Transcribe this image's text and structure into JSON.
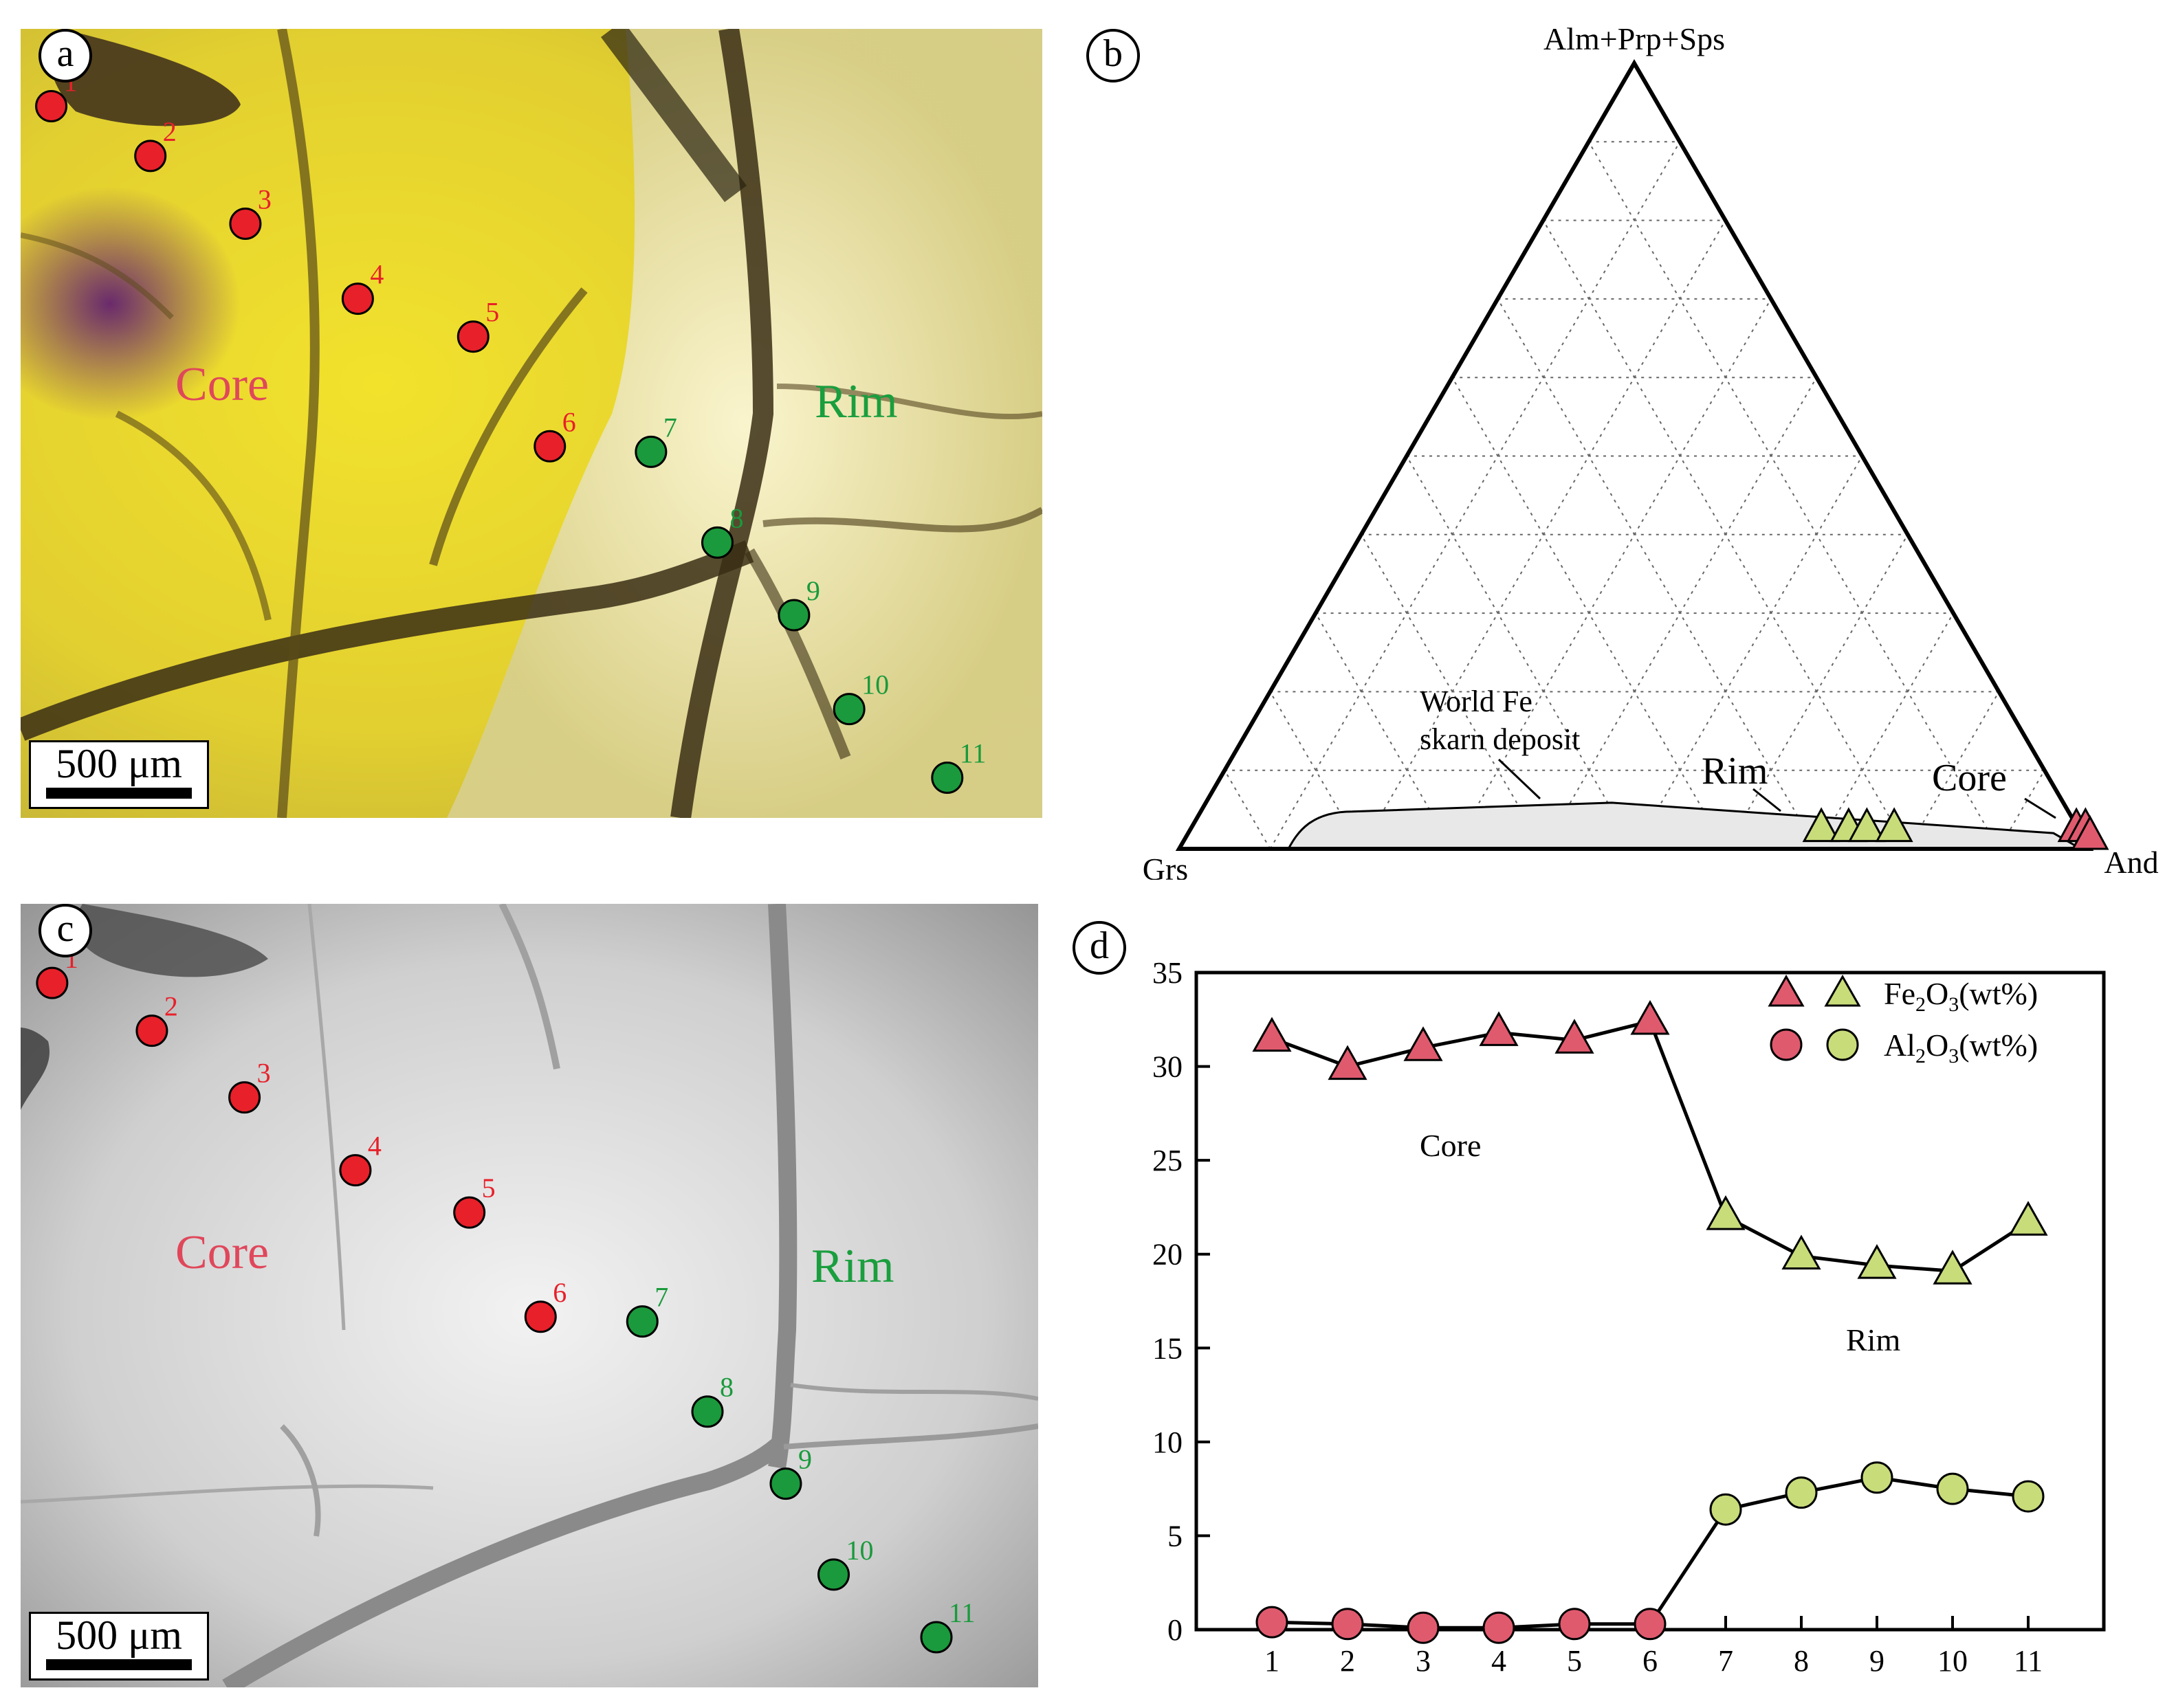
{
  "panels": {
    "a": {
      "letter": "a",
      "core_label": "Core",
      "rim_label": "Rim",
      "scale_label": "500 μm",
      "points": [
        {
          "n": "1",
          "zone": "core",
          "fx": 0.03,
          "fy": 0.098
        },
        {
          "n": "2",
          "zone": "core",
          "fx": 0.127,
          "fy": 0.161
        },
        {
          "n": "3",
          "zone": "core",
          "fx": 0.22,
          "fy": 0.247
        },
        {
          "n": "4",
          "zone": "core",
          "fx": 0.33,
          "fy": 0.342
        },
        {
          "n": "5",
          "zone": "core",
          "fx": 0.443,
          "fy": 0.39
        },
        {
          "n": "6",
          "zone": "core",
          "fx": 0.518,
          "fy": 0.529
        },
        {
          "n": "7",
          "zone": "rim",
          "fx": 0.617,
          "fy": 0.536
        },
        {
          "n": "8",
          "zone": "rim",
          "fx": 0.682,
          "fy": 0.651
        },
        {
          "n": "9",
          "zone": "rim",
          "fx": 0.757,
          "fy": 0.743
        },
        {
          "n": "10",
          "zone": "rim",
          "fx": 0.811,
          "fy": 0.862
        },
        {
          "n": "11",
          "zone": "rim",
          "fx": 0.907,
          "fy": 0.949
        }
      ]
    },
    "b": {
      "letter": "b"
    },
    "c": {
      "letter": "c",
      "core_label": "Core",
      "rim_label": "Rim",
      "scale_label": "500 μm",
      "points": [
        {
          "n": "1",
          "zone": "core",
          "fx": 0.031,
          "fy": 0.101
        },
        {
          "n": "2",
          "zone": "core",
          "fx": 0.129,
          "fy": 0.162
        },
        {
          "n": "3",
          "zone": "core",
          "fx": 0.22,
          "fy": 0.247
        },
        {
          "n": "4",
          "zone": "core",
          "fx": 0.329,
          "fy": 0.34
        },
        {
          "n": "5",
          "zone": "core",
          "fx": 0.441,
          "fy": 0.394
        },
        {
          "n": "6",
          "zone": "core",
          "fx": 0.511,
          "fy": 0.527
        },
        {
          "n": "7",
          "zone": "rim",
          "fx": 0.611,
          "fy": 0.533
        },
        {
          "n": "8",
          "zone": "rim",
          "fx": 0.675,
          "fy": 0.648
        },
        {
          "n": "9",
          "zone": "rim",
          "fx": 0.752,
          "fy": 0.74
        },
        {
          "n": "10",
          "zone": "rim",
          "fx": 0.799,
          "fy": 0.856
        },
        {
          "n": "11",
          "zone": "rim",
          "fx": 0.9,
          "fy": 0.936
        }
      ]
    },
    "d": {
      "letter": "d"
    }
  },
  "colors": {
    "core": "#e0475b",
    "rim": "#1a9e3e",
    "core_marker": "#e05a6e",
    "rim_marker": "#c8dc7a",
    "photo_a": "#e8df2a",
    "photo_c": "#c8c8c8"
  },
  "chart_data": [
    {
      "type": "ternary",
      "apex_labels": {
        "top": "Alm+Prp+Sps",
        "left": "Grs",
        "right": "And"
      },
      "grid": true,
      "annotations": [
        "World Fe",
        "skarn deposit",
        "Rim",
        "Core"
      ],
      "field": "World Fe skarn deposit",
      "series": [
        {
          "name": "Rim",
          "marker": "triangle",
          "color": "#c8dc7a",
          "points": [
            {
              "and": 70,
              "grs": 29,
              "top": 1
            },
            {
              "and": 73,
              "grs": 26,
              "top": 1
            },
            {
              "and": 75,
              "grs": 24,
              "top": 1
            },
            {
              "and": 78,
              "grs": 21,
              "top": 1
            }
          ]
        },
        {
          "name": "Core",
          "marker": "triangle",
          "color": "#e05a6e",
          "points": [
            {
              "and": 98,
              "grs": 1,
              "top": 1
            },
            {
              "and": 99,
              "grs": 0,
              "top": 1
            },
            {
              "and": 100,
              "grs": 0,
              "top": 0
            }
          ]
        }
      ]
    },
    {
      "type": "line",
      "x": [
        1,
        2,
        3,
        4,
        5,
        6,
        7,
        8,
        9,
        10,
        11
      ],
      "ylim": [
        0,
        35
      ],
      "yticks": [
        0,
        5,
        10,
        15,
        20,
        25,
        30,
        35
      ],
      "legend": "top-right",
      "legend_entries": [
        {
          "name_parts": [
            "Fe",
            "2",
            "O",
            "3",
            "(wt%)"
          ],
          "marker": "triangle"
        },
        {
          "name_parts": [
            "Al",
            "2",
            "O",
            "3",
            "(wt%)"
          ],
          "marker": "circle"
        }
      ],
      "annotations": [
        "Core",
        "Rim"
      ],
      "series": [
        {
          "name": "Fe2O3(wt%)",
          "marker": "triangle",
          "values": [
            31.5,
            30.0,
            31.0,
            31.8,
            31.4,
            32.4,
            22.0,
            19.9,
            19.4,
            19.1,
            21.7
          ]
        },
        {
          "name": "Al2O3(wt%)",
          "marker": "circle",
          "values": [
            0.4,
            0.3,
            0.1,
            0.1,
            0.3,
            0.3,
            6.4,
            7.3,
            8.1,
            7.5,
            7.1
          ]
        }
      ],
      "zone_split_after": 6
    }
  ]
}
